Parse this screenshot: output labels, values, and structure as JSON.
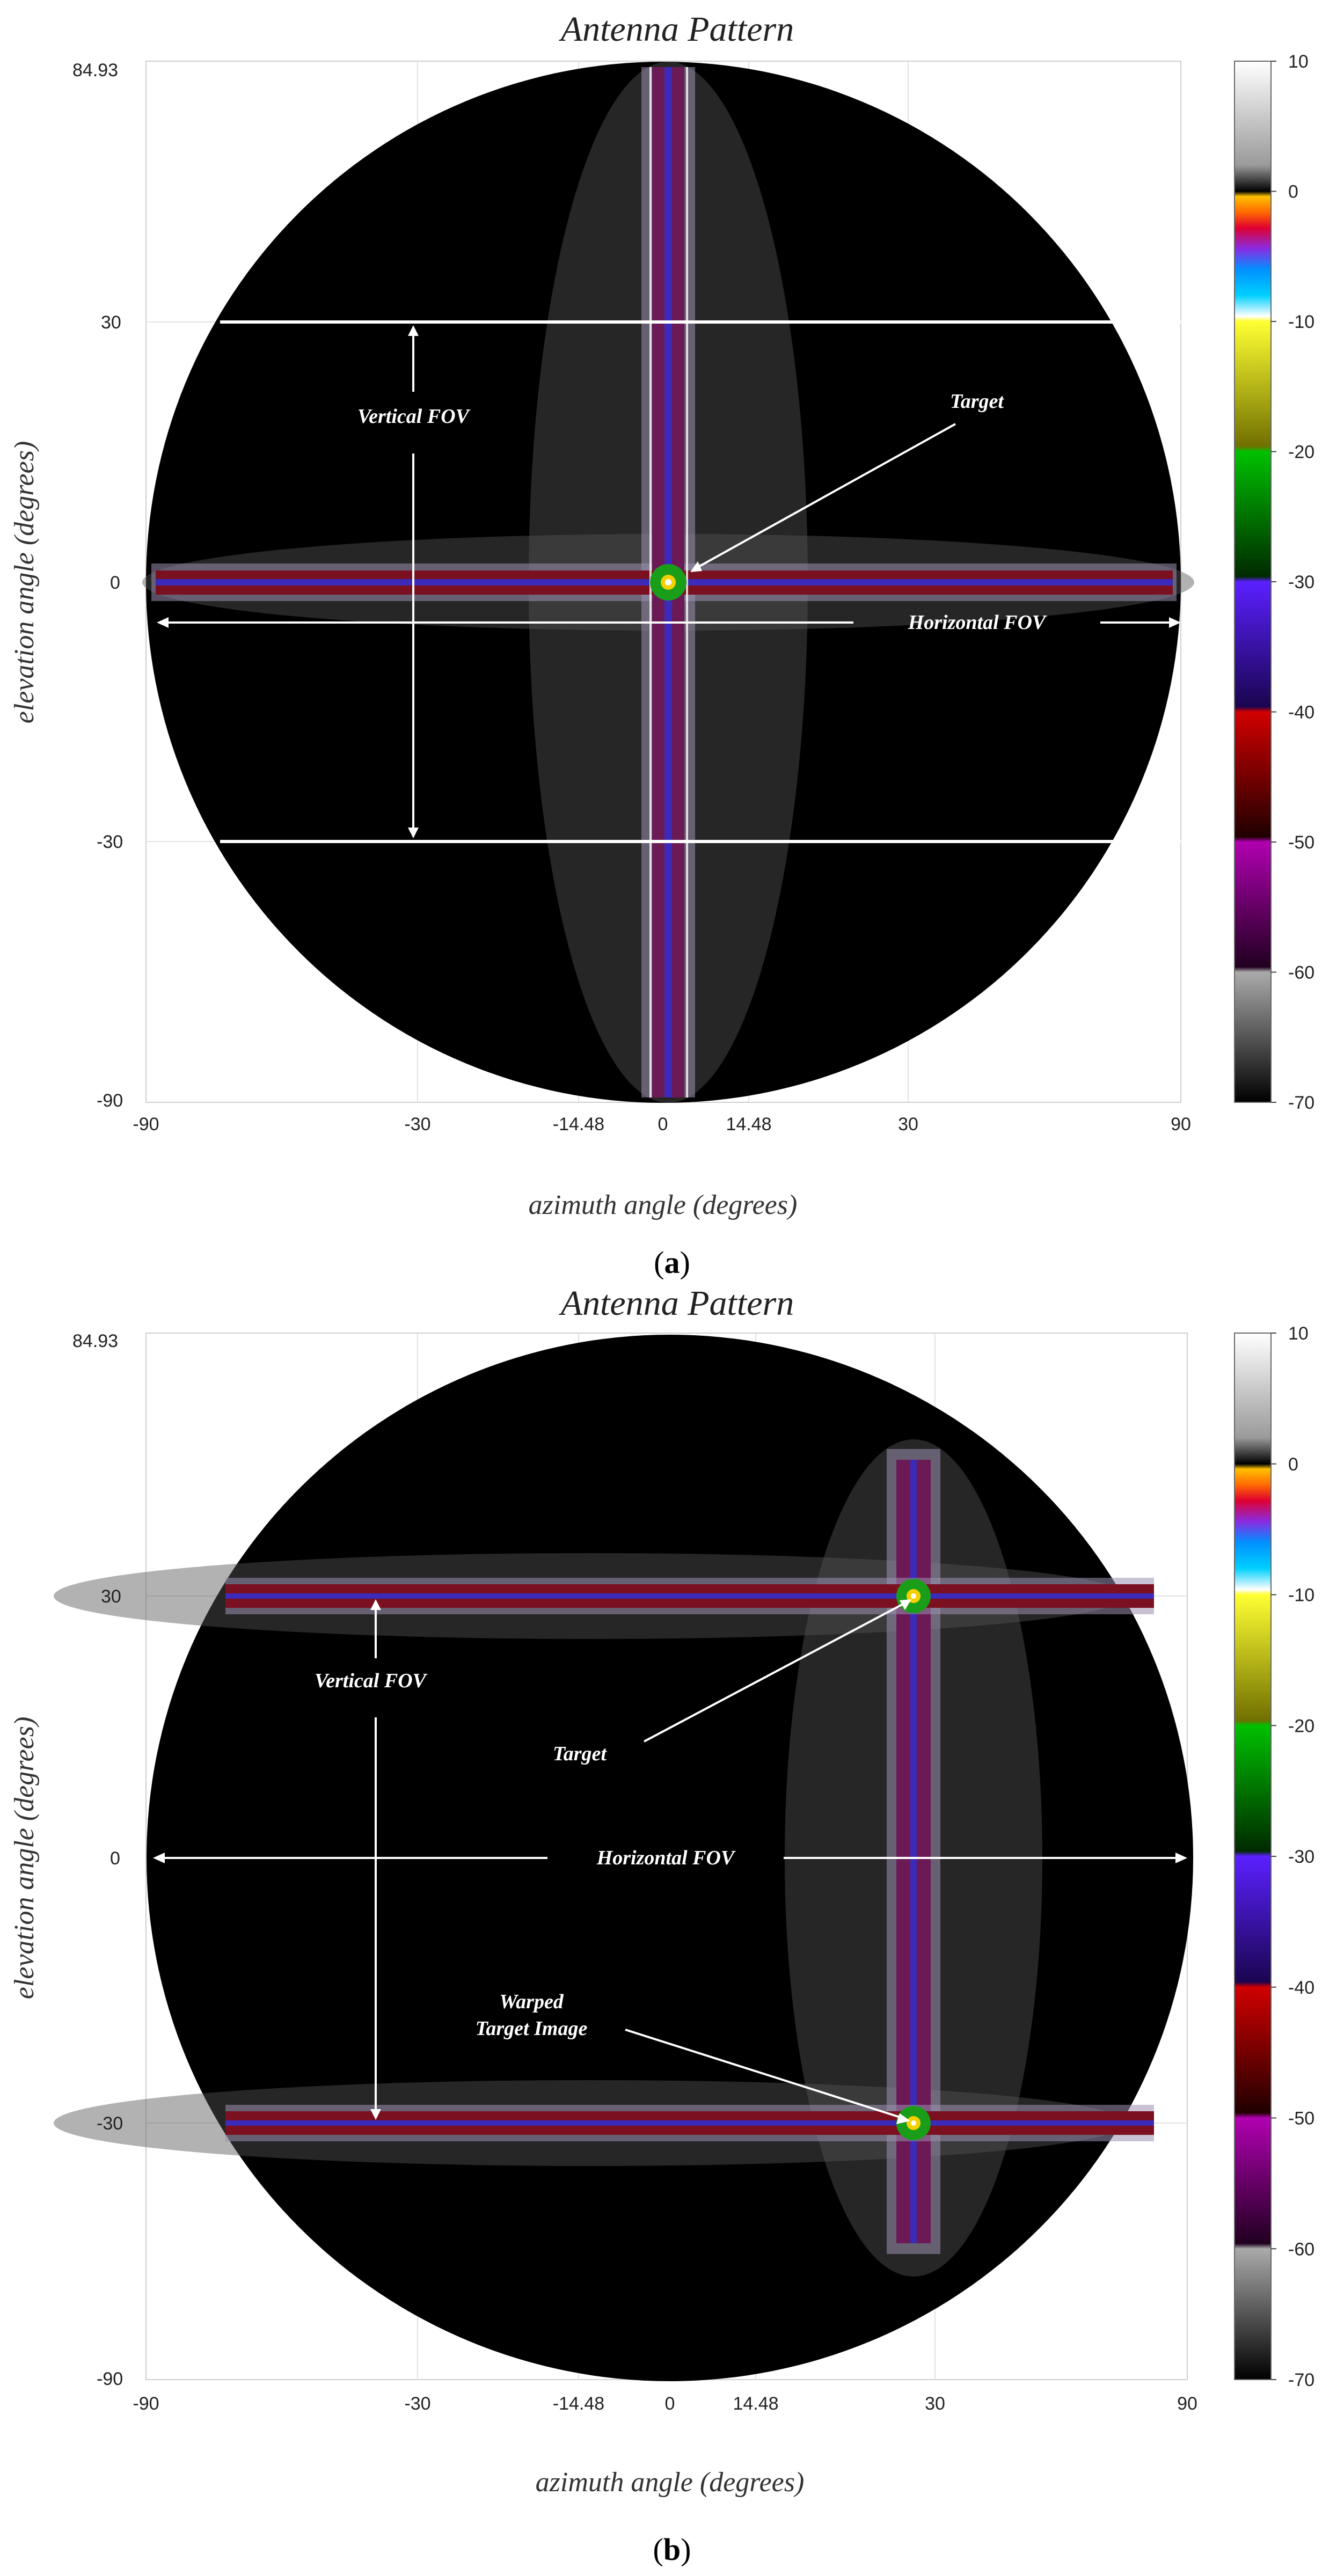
{
  "chart_data": [
    {
      "type": "heatmap",
      "panel": "a",
      "title": "Antenna Pattern",
      "xlabel": "azimuth angle (degrees)",
      "ylabel": "elevation angle (degrees)",
      "xlim": [
        -90,
        90
      ],
      "ylim": [
        -90,
        84.93
      ],
      "xticks": [
        -90,
        -30,
        -14.48,
        0,
        14.48,
        30,
        90
      ],
      "xtick_labels": [
        "-90",
        "-30",
        "-14.48",
        "0",
        "14.48",
        "30",
        "90"
      ],
      "yticks": [
        84.93,
        30,
        0,
        -30,
        -90
      ],
      "ytick_labels": [
        "84.93",
        "30",
        "0",
        "-30",
        "-90"
      ],
      "grid": true,
      "colorbar": {
        "range": [
          -70,
          10
        ],
        "ticks": [
          10,
          0,
          -10,
          -20,
          -30,
          -40,
          -50,
          -60,
          -70
        ],
        "tick_labels": [
          "10",
          "0",
          "-10",
          "-20",
          "-30",
          "-40",
          "-50",
          "-60",
          "-70"
        ]
      },
      "fov_lines_elevation": [
        30,
        -30
      ],
      "target": {
        "azimuth": 2,
        "elevation": 0
      },
      "annotations": {
        "vertical_fov": "Vertical FOV",
        "horizontal_fov": "Horizontal FOV",
        "target": "Target"
      },
      "caption_letter": "a"
    },
    {
      "type": "heatmap",
      "panel": "b",
      "title": "Antenna Pattern",
      "xlabel": "azimuth angle (degrees)",
      "ylabel": "elevation angle (degrees)",
      "xlim": [
        -90,
        90
      ],
      "ylim": [
        -90,
        84.93
      ],
      "xticks": [
        -90,
        -30,
        -14.48,
        0,
        14.48,
        30,
        90
      ],
      "xtick_labels": [
        "-90",
        "-30",
        "-14.48",
        "0",
        "14.48",
        "30",
        "90"
      ],
      "yticks": [
        84.93,
        30,
        0,
        -30,
        -90
      ],
      "ytick_labels": [
        "84.93",
        "30",
        "0",
        "-30",
        "-90"
      ],
      "grid": true,
      "colorbar": {
        "range": [
          -70,
          10
        ],
        "ticks": [
          10,
          0,
          -10,
          -20,
          -30,
          -40,
          -50,
          -60,
          -70
        ],
        "tick_labels": [
          "10",
          "0",
          "-10",
          "-20",
          "-30",
          "-40",
          "-50",
          "-60",
          "-70"
        ]
      },
      "target": {
        "azimuth": 26,
        "elevation": 30
      },
      "warped_target": {
        "azimuth": 26,
        "elevation": -30
      },
      "annotations": {
        "vertical_fov": "Vertical FOV",
        "horizontal_fov": "Horizontal FOV",
        "target": "Target",
        "warped_line1": "Warped",
        "warped_line2": "Target Image"
      },
      "caption_letter": "b"
    }
  ]
}
